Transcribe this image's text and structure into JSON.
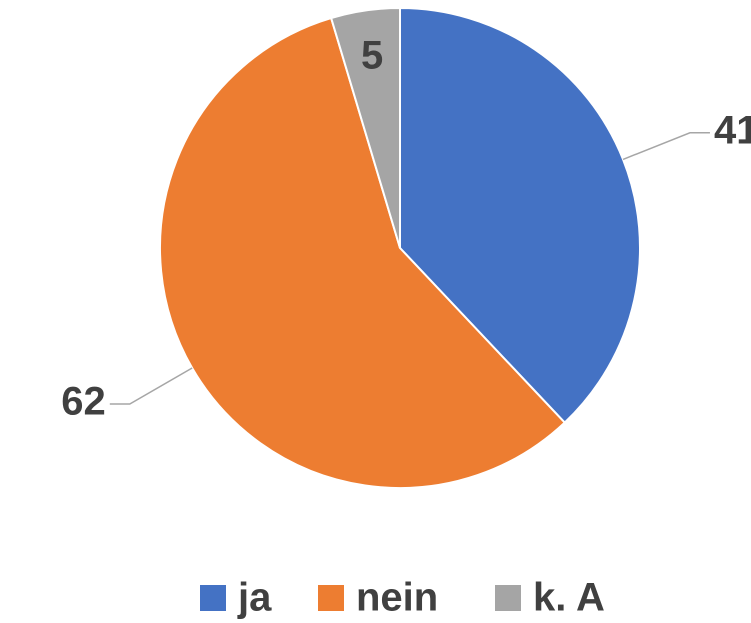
{
  "chart_data": {
    "type": "pie",
    "categories": [
      "ja",
      "nein",
      "k. A"
    ],
    "values": [
      41,
      62,
      5
    ],
    "colors": [
      "#4472c4",
      "#ed7d31",
      "#a5a5a5"
    ],
    "legend": "bottom"
  }
}
